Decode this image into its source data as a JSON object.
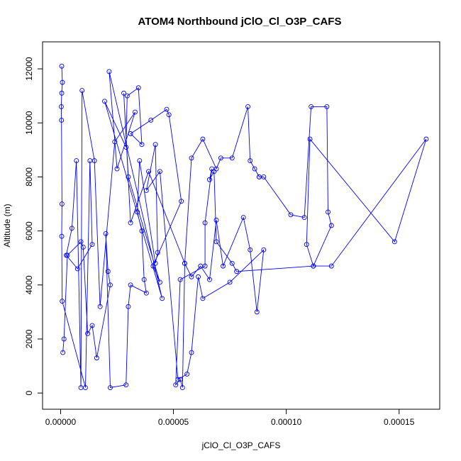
{
  "chart_data": {
    "type": "line",
    "title": "ATOM4 Northbound jClO_Cl_O3P_CAFS",
    "xlabel": "jClO_Cl_O3P_CAFS",
    "ylabel": "Altitude (m)",
    "xlim": [
      -8e-06,
      0.000168
    ],
    "ylim": [
      -600,
      13000
    ],
    "x_ticks": [
      0,
      5e-05,
      0.0001,
      0.00015
    ],
    "x_tick_labels": [
      "0.00000",
      "0.00005",
      "0.00010",
      "0.00015"
    ],
    "y_ticks": [
      0,
      2000,
      4000,
      6000,
      8000,
      10000,
      12000
    ],
    "y_tick_labels": [
      "0",
      "2000",
      "4000",
      "6000",
      "8000",
      "10000",
      "12000"
    ],
    "grid": false,
    "series": [
      {
        "color": "#0000ff",
        "marker": "open-circle",
        "x": [
          5e-07,
          8e-07,
          5e-07,
          3e-07,
          4e-07,
          6e-07,
          5e-07,
          7e-07,
          1.1e-05,
          1.3e-05,
          1.4e-05,
          7.5e-06,
          2.5e-06,
          5e-06,
          7e-06,
          9e-06,
          9.5e-06,
          1.5e-05,
          1.75e-05,
          2.4e-05,
          3.3e-05,
          2.5e-05,
          2.15e-05,
          4.5e-05,
          1.95e-05,
          2.9e-05,
          2.95e-05,
          3.45e-05,
          3.6e-05,
          3.1e-05,
          4e-05,
          4.7e-05,
          4.8e-05,
          5.35e-05,
          4.1e-05,
          4.4e-05,
          3e-05,
          2.8e-05,
          3.1e-05,
          3.9e-05,
          5.5e-05,
          5.8e-05,
          6.3e-05,
          6.9e-05,
          7.1e-05,
          7.6e-05,
          8.3e-05,
          8.4e-05,
          8.6e-05,
          8.8e-05,
          8.8e-05,
          9e-05,
          0.000102,
          0.000108,
          0.000111,
          0.000118,
          0.0001185,
          0.00012,
          0.000112,
          0.000109,
          0.0001105,
          0.000148,
          0.000162,
          0.00012,
          0.000112,
          7.8e-05,
          7.6e-05,
          6.9e-05,
          6.8e-05,
          6.6e-05,
          6.7e-05,
          6.4e-05,
          6.4e-05,
          5.3e-05,
          5.1e-05,
          5.3e-05,
          5.4e-05,
          5.5e-05,
          5.8e-05,
          6.2e-05,
          6.6e-05,
          6.9e-05,
          7.2e-05,
          8.1e-05,
          8.4e-05,
          8.7e-05,
          9e-05,
          7.5e-05,
          6.3e-05,
          6.1e-05,
          5.8e-05,
          5.6e-05,
          5.2e-05,
          4.4e-05,
          3.8e-05,
          4.2e-05,
          4.3e-05,
          4.2e-05,
          3.5e-05,
          3.4e-05,
          3.6e-05,
          3.7e-05,
          3.8e-05,
          3.1e-05,
          3e-05,
          2.9e-05,
          2.2e-05,
          2e-05,
          2.1e-05,
          2.2e-05,
          1.6e-05,
          1.4e-05,
          1.2e-05,
          1e-05,
          9e-06,
          3e-06,
          1.5e-06,
          1e-06
        ],
        "y": [
          12100,
          11500,
          11100,
          10600,
          10100,
          7000,
          5800,
          3400,
          200,
          8600,
          5500,
          4600,
          5100,
          6100,
          8600,
          200,
          11200,
          8600,
          3200,
          9300,
          10400,
          8300,
          11900,
          3500,
          10800,
          9100,
          11000,
          11300,
          9200,
          9600,
          10100,
          10500,
          10300,
          7100,
          4700,
          4100,
          8000,
          11100,
          6300,
          8200,
          4800,
          8700,
          9400,
          8300,
          8700,
          8700,
          10600,
          8600,
          8300,
          8000,
          8000,
          8000,
          6600,
          6500,
          10600,
          10600,
          6700,
          6200,
          4700,
          5500,
          9400,
          5600,
          9400,
          4700,
          4700,
          4500,
          4800,
          5600,
          8200,
          7900,
          8300,
          6300,
          4700,
          4200,
          300,
          500,
          200,
          4800,
          4300,
          4700,
          4200,
          6400,
          4700,
          6500,
          5300,
          3000,
          5300,
          4100,
          3500,
          4300,
          1500,
          700,
          500,
          8200,
          7500,
          9200,
          5200,
          4800,
          8600,
          6700,
          6000,
          4200,
          3700,
          4000,
          3200,
          300,
          200,
          5900,
          4500,
          4000,
          1300,
          2500,
          2200,
          5400,
          5600,
          5100,
          2000,
          1500
        ]
      }
    ]
  }
}
